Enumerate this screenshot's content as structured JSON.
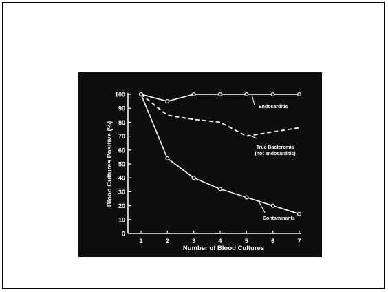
{
  "colors": {
    "page_bg": "#ffffff",
    "slide_bg": "#0d0d0d",
    "ink": "#ffffff"
  },
  "chart_data": {
    "type": "line",
    "xlabel": "Number of Blood Cultures",
    "ylabel": "Blood Cultures Positive (%)",
    "xlim": [
      1,
      7
    ],
    "ylim": [
      0,
      100
    ],
    "x_ticks": [
      "1",
      "2",
      "3",
      "4",
      "5",
      "6",
      "7"
    ],
    "y_ticks": [
      "0",
      "10",
      "20",
      "30",
      "40",
      "50",
      "60",
      "70",
      "80",
      "90",
      "100"
    ],
    "grid": false,
    "legend": "none (series labeled directly)",
    "series": [
      {
        "name": "Endocarditis",
        "x": [
          1,
          2,
          3,
          4,
          5,
          6,
          7
        ],
        "values": [
          100,
          95,
          100,
          100,
          100,
          100,
          100
        ],
        "style": "solid",
        "markers": true
      },
      {
        "name": "True Bacteremia",
        "sublabel": "(not endocarditis)",
        "x": [
          1,
          2,
          3,
          4,
          5,
          6,
          7
        ],
        "values": [
          100,
          85,
          82,
          80,
          70,
          73,
          76
        ],
        "style": "dashed",
        "markers": false
      },
      {
        "name": "Contaminants",
        "x": [
          1,
          2,
          3,
          4,
          5,
          6,
          7
        ],
        "values": [
          100,
          54,
          40,
          32,
          26,
          20,
          14
        ],
        "style": "solid",
        "markers": true
      }
    ]
  }
}
